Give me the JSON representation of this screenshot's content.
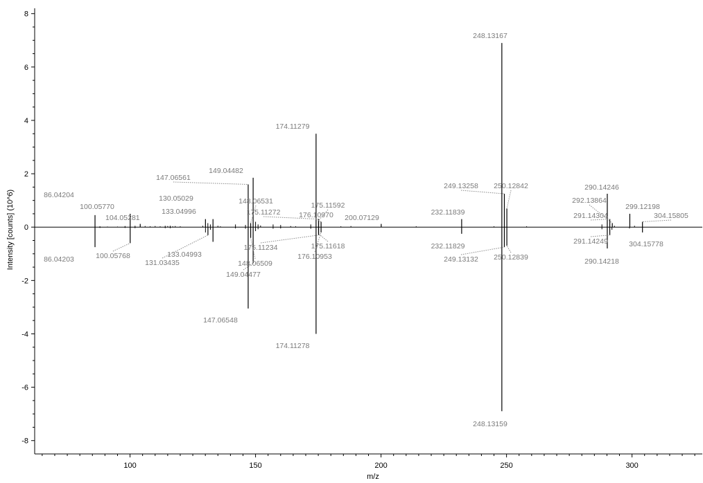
{
  "chart_data": {
    "type": "bar",
    "xlabel": "m/z",
    "ylabel": "Intensity [counts] (10^6)",
    "xlim": [
      62,
      328
    ],
    "ylim": [
      -8.5,
      8.2
    ],
    "x_ticks": [
      100,
      150,
      200,
      250,
      300
    ],
    "y_ticks": [
      8,
      6,
      4,
      2,
      0,
      -2,
      -4,
      -6,
      -8
    ],
    "grid": false,
    "legend": "none",
    "colors": {
      "stick": "#000000",
      "label": "#7a7a7a",
      "axis": "#000000"
    },
    "labeled_peaks": [
      {
        "mz": 86.04204,
        "intensity": 0.45,
        "label": "86.04204"
      },
      {
        "mz": 100.0577,
        "intensity": 0.5,
        "label": "100.05770"
      },
      {
        "mz": 104.05281,
        "intensity": 0.12,
        "label": "104.05281"
      },
      {
        "mz": 130.05029,
        "intensity": 0.3,
        "label": "130.05029"
      },
      {
        "mz": 133.04996,
        "intensity": 0.3,
        "label": "133.04996"
      },
      {
        "mz": 147.06561,
        "intensity": 1.6,
        "label": "147.06561"
      },
      {
        "mz": 149.04482,
        "intensity": 1.85,
        "label": "149.04482"
      },
      {
        "mz": 148.06531,
        "intensity": 0.15,
        "label": "148.06531"
      },
      {
        "mz": 174.11279,
        "intensity": 3.5,
        "label": "174.11279"
      },
      {
        "mz": 175.11272,
        "intensity": 0.3,
        "label": "175.11272"
      },
      {
        "mz": 175.11592,
        "intensity": 0.25,
        "label": "175.11592"
      },
      {
        "mz": 176.1097,
        "intensity": 0.2,
        "label": "176.10970"
      },
      {
        "mz": 200.07129,
        "intensity": 0.12,
        "label": "200.07129"
      },
      {
        "mz": 232.11839,
        "intensity": 0.3,
        "label": "232.11839"
      },
      {
        "mz": 248.13167,
        "intensity": 6.9,
        "label": "248.13167"
      },
      {
        "mz": 249.13258,
        "intensity": 1.25,
        "label": "249.13258"
      },
      {
        "mz": 250.12842,
        "intensity": 0.7,
        "label": "250.12842"
      },
      {
        "mz": 290.14246,
        "intensity": 1.25,
        "label": "290.14246"
      },
      {
        "mz": 291.14304,
        "intensity": 0.3,
        "label": "291.14304"
      },
      {
        "mz": 292.13864,
        "intensity": 0.15,
        "label": "292.13864"
      },
      {
        "mz": 299.12198,
        "intensity": 0.5,
        "label": "299.12198"
      },
      {
        "mz": 304.15805,
        "intensity": 0.2,
        "label": "304.15805"
      },
      {
        "mz": 86.04203,
        "intensity": -0.75,
        "label": "86.04203"
      },
      {
        "mz": 100.05768,
        "intensity": -0.6,
        "label": "100.05768"
      },
      {
        "mz": 131.03435,
        "intensity": -0.3,
        "label": "131.03435"
      },
      {
        "mz": 133.04993,
        "intensity": -0.55,
        "label": "133.04993"
      },
      {
        "mz": 147.06548,
        "intensity": -3.05,
        "label": "147.06548"
      },
      {
        "mz": 148.06509,
        "intensity": -0.4,
        "label": "148.06509"
      },
      {
        "mz": 149.04477,
        "intensity": -1.35,
        "label": "149.04477"
      },
      {
        "mz": 174.11278,
        "intensity": -4.0,
        "label": "174.11278"
      },
      {
        "mz": 175.11234,
        "intensity": -0.3,
        "label": "175.11234"
      },
      {
        "mz": 175.11618,
        "intensity": -0.25,
        "label": "175.11618"
      },
      {
        "mz": 176.10953,
        "intensity": -0.2,
        "label": "176.10953"
      },
      {
        "mz": 232.11829,
        "intensity": -0.25,
        "label": "232.11829"
      },
      {
        "mz": 248.13159,
        "intensity": -6.9,
        "label": "248.13159"
      },
      {
        "mz": 249.13132,
        "intensity": -0.75,
        "label": "249.13132"
      },
      {
        "mz": 250.12839,
        "intensity": -0.7,
        "label": "250.12839"
      },
      {
        "mz": 290.14218,
        "intensity": -0.8,
        "label": "290.14218"
      },
      {
        "mz": 291.14249,
        "intensity": -0.3,
        "label": "291.14249"
      },
      {
        "mz": 304.15778,
        "intensity": -0.2,
        "label": "304.15778"
      }
    ],
    "minor_peaks": [
      {
        "mz": 88.0,
        "intensity": 0.03
      },
      {
        "mz": 91.0,
        "intensity": 0.02
      },
      {
        "mz": 95.0,
        "intensity": 0.02
      },
      {
        "mz": 98.0,
        "intensity": 0.04
      },
      {
        "mz": 102.0,
        "intensity": 0.05
      },
      {
        "mz": 106.0,
        "intensity": 0.04
      },
      {
        "mz": 108.0,
        "intensity": 0.03
      },
      {
        "mz": 110.0,
        "intensity": 0.04
      },
      {
        "mz": 112.0,
        "intensity": 0.03
      },
      {
        "mz": 114.0,
        "intensity": 0.05
      },
      {
        "mz": 115.0,
        "intensity": 0.04
      },
      {
        "mz": 116.0,
        "intensity": 0.05
      },
      {
        "mz": 117.0,
        "intensity": 0.03
      },
      {
        "mz": 118.0,
        "intensity": 0.04
      },
      {
        "mz": 120.0,
        "intensity": 0.03
      },
      {
        "mz": 129.0,
        "intensity": 0.05
      },
      {
        "mz": 131.0,
        "intensity": 0.15
      },
      {
        "mz": 132.0,
        "intensity": 0.1
      },
      {
        "mz": 135.0,
        "intensity": 0.05
      },
      {
        "mz": 136.0,
        "intensity": 0.03
      },
      {
        "mz": 142.0,
        "intensity": 0.1
      },
      {
        "mz": 146.0,
        "intensity": 0.08
      },
      {
        "mz": 150.0,
        "intensity": 0.2
      },
      {
        "mz": 151.0,
        "intensity": 0.1
      },
      {
        "mz": 152.0,
        "intensity": 0.06
      },
      {
        "mz": 157.0,
        "intensity": 0.1
      },
      {
        "mz": 160.0,
        "intensity": 0.08
      },
      {
        "mz": 164.0,
        "intensity": 0.04
      },
      {
        "mz": 166.0,
        "intensity": 0.03
      },
      {
        "mz": 172.0,
        "intensity": 0.1
      },
      {
        "mz": 184.0,
        "intensity": 0.03
      },
      {
        "mz": 188.0,
        "intensity": 0.04
      },
      {
        "mz": 214.0,
        "intensity": 0.03
      },
      {
        "mz": 245.0,
        "intensity": 0.03
      },
      {
        "mz": 258.0,
        "intensity": 0.03
      },
      {
        "mz": 288.0,
        "intensity": 0.1
      },
      {
        "mz": 293.0,
        "intensity": 0.05
      },
      {
        "mz": 301.0,
        "intensity": 0.05
      },
      {
        "mz": 88.0,
        "intensity": -0.03
      },
      {
        "mz": 98.0,
        "intensity": -0.03
      },
      {
        "mz": 102.0,
        "intensity": -0.04
      },
      {
        "mz": 114.0,
        "intensity": -0.04
      },
      {
        "mz": 116.0,
        "intensity": -0.04
      },
      {
        "mz": 130.05,
        "intensity": -0.2
      },
      {
        "mz": 132.0,
        "intensity": -0.1
      },
      {
        "mz": 142.0,
        "intensity": -0.05
      },
      {
        "mz": 146.0,
        "intensity": -0.06
      },
      {
        "mz": 150.0,
        "intensity": -0.15
      },
      {
        "mz": 151.0,
        "intensity": -0.08
      },
      {
        "mz": 157.0,
        "intensity": -0.06
      },
      {
        "mz": 160.0,
        "intensity": -0.05
      },
      {
        "mz": 172.0,
        "intensity": -0.06
      },
      {
        "mz": 288.0,
        "intensity": -0.08
      },
      {
        "mz": 292.0,
        "intensity": -0.1
      },
      {
        "mz": 299.0,
        "intensity": -0.05
      }
    ]
  }
}
